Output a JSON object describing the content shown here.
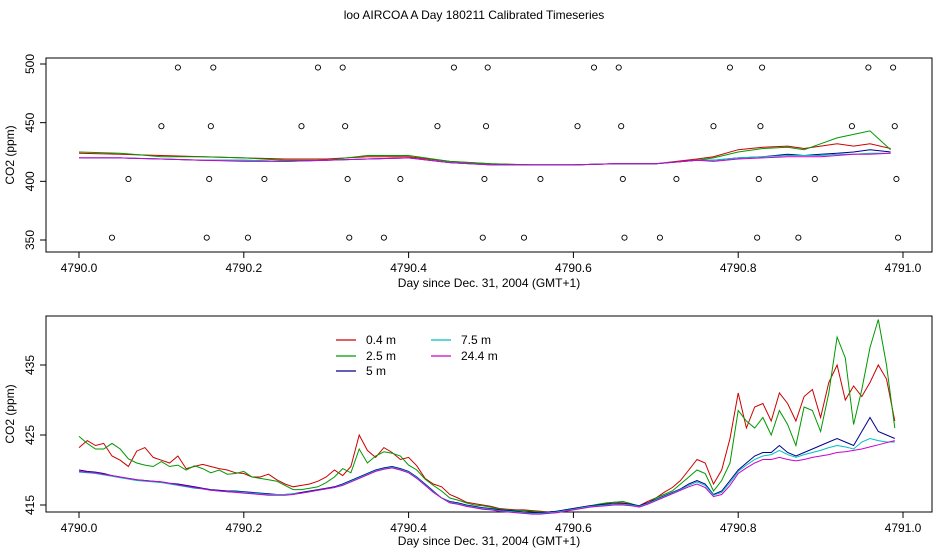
{
  "figure_title": "loo AIRCOA A  Day 180211  Calibrated Timeseries",
  "chart_data": [
    {
      "type": "scatter+line",
      "title": "",
      "xlabel": "Day since Dec. 31, 2004 (GMT+1)",
      "ylabel": "CO2 (ppm)",
      "xlim": [
        4790.0,
        4791.0
      ],
      "ylim": [
        350,
        500
      ],
      "xticks": [
        "4790.0",
        "4790.2",
        "4790.4",
        "4790.6",
        "4790.8",
        "4791.0"
      ],
      "yticks": [
        "350",
        "400",
        "450",
        "500"
      ],
      "scatter_points": [
        {
          "x": 4790.04,
          "y": 352
        },
        {
          "x": 4790.06,
          "y": 402
        },
        {
          "x": 4790.1,
          "y": 447
        },
        {
          "x": 4790.12,
          "y": 497
        },
        {
          "x": 4790.155,
          "y": 352
        },
        {
          "x": 4790.158,
          "y": 402
        },
        {
          "x": 4790.16,
          "y": 447
        },
        {
          "x": 4790.163,
          "y": 497
        },
        {
          "x": 4790.205,
          "y": 352
        },
        {
          "x": 4790.225,
          "y": 402
        },
        {
          "x": 4790.27,
          "y": 447
        },
        {
          "x": 4790.29,
          "y": 497
        },
        {
          "x": 4790.32,
          "y": 497
        },
        {
          "x": 4790.323,
          "y": 447
        },
        {
          "x": 4790.326,
          "y": 402
        },
        {
          "x": 4790.328,
          "y": 352
        },
        {
          "x": 4790.37,
          "y": 352
        },
        {
          "x": 4790.39,
          "y": 402
        },
        {
          "x": 4790.435,
          "y": 447
        },
        {
          "x": 4790.455,
          "y": 497
        },
        {
          "x": 4790.49,
          "y": 352
        },
        {
          "x": 4790.492,
          "y": 402
        },
        {
          "x": 4790.494,
          "y": 447
        },
        {
          "x": 4790.496,
          "y": 497
        },
        {
          "x": 4790.54,
          "y": 352
        },
        {
          "x": 4790.56,
          "y": 402
        },
        {
          "x": 4790.605,
          "y": 447
        },
        {
          "x": 4790.625,
          "y": 497
        },
        {
          "x": 4790.655,
          "y": 497
        },
        {
          "x": 4790.658,
          "y": 447
        },
        {
          "x": 4790.66,
          "y": 402
        },
        {
          "x": 4790.662,
          "y": 352
        },
        {
          "x": 4790.705,
          "y": 352
        },
        {
          "x": 4790.725,
          "y": 402
        },
        {
          "x": 4790.77,
          "y": 447
        },
        {
          "x": 4790.79,
          "y": 497
        },
        {
          "x": 4790.823,
          "y": 352
        },
        {
          "x": 4790.825,
          "y": 402
        },
        {
          "x": 4790.827,
          "y": 447
        },
        {
          "x": 4790.829,
          "y": 497
        },
        {
          "x": 4790.873,
          "y": 352
        },
        {
          "x": 4790.893,
          "y": 402
        },
        {
          "x": 4790.938,
          "y": 447
        },
        {
          "x": 4790.958,
          "y": 497
        },
        {
          "x": 4790.988,
          "y": 497
        },
        {
          "x": 4790.99,
          "y": 447
        },
        {
          "x": 4790.992,
          "y": 402
        },
        {
          "x": 4790.994,
          "y": 352
        }
      ],
      "x": [
        4790.0,
        4790.05,
        4790.1,
        4790.15,
        4790.2,
        4790.25,
        4790.3,
        4790.35,
        4790.4,
        4790.45,
        4790.5,
        4790.55,
        4790.6,
        4790.65,
        4790.7,
        4790.75,
        4790.77,
        4790.8,
        4790.83,
        4790.86,
        4790.88,
        4790.9,
        4790.92,
        4790.94,
        4790.96,
        4790.985
      ],
      "series": [
        {
          "color": "#cc0000",
          "values": [
            424,
            423,
            422,
            421,
            420,
            419,
            419,
            421,
            421,
            417,
            415,
            414,
            414,
            415,
            415,
            419,
            421,
            427,
            429,
            430,
            428,
            430,
            432,
            430,
            432,
            428
          ]
        },
        {
          "color": "#009900",
          "values": [
            425,
            424,
            421,
            421,
            420,
            418,
            418,
            422,
            422,
            417,
            415,
            414,
            414,
            415,
            415,
            418,
            420,
            425,
            428,
            429,
            427,
            432,
            437,
            440,
            443,
            427
          ]
        },
        {
          "color": "#00008b",
          "values": [
            420,
            420,
            419,
            418,
            418,
            417,
            418,
            419,
            420,
            416,
            414,
            414,
            414,
            415,
            415,
            418,
            418,
            420,
            421,
            423,
            422,
            423,
            424,
            425,
            427,
            425
          ]
        },
        {
          "color": "#00bfbf",
          "values": [
            420,
            420,
            419,
            418,
            418,
            417,
            418,
            419,
            420,
            416,
            414,
            414,
            414,
            415,
            415,
            418,
            418,
            420,
            421,
            422,
            422,
            422,
            423,
            423,
            424,
            424
          ]
        },
        {
          "color": "#cc00cc",
          "values": [
            420,
            420,
            419,
            418,
            417,
            417,
            418,
            419,
            420,
            416,
            414,
            414,
            414,
            415,
            415,
            418,
            417,
            419,
            420,
            421,
            421,
            421,
            422,
            423,
            423,
            424
          ]
        }
      ]
    },
    {
      "type": "line",
      "title": "",
      "xlabel": "Day since Dec. 31, 2004 (GMT+1)",
      "ylabel": "CO2 (ppm)",
      "xlim": [
        4790.0,
        4791.0
      ],
      "ylim": [
        414,
        442
      ],
      "xticks": [
        "4790.0",
        "4790.2",
        "4790.4",
        "4790.6",
        "4790.8",
        "4791.0"
      ],
      "yticks": [
        "415",
        "425",
        "435"
      ],
      "legend": {
        "placement": "top-left",
        "entries": [
          {
            "label": "0.4 m",
            "color": "#cc0000"
          },
          {
            "label": "2.5 m",
            "color": "#009900"
          },
          {
            "label": "5 m",
            "color": "#00008b"
          },
          {
            "label": "7.5 m",
            "color": "#00bfbf"
          },
          {
            "label": "24.4 m",
            "color": "#cc00cc"
          }
        ]
      },
      "x": [
        4790.0,
        4790.01,
        4790.02,
        4790.03,
        4790.04,
        4790.05,
        4790.06,
        4790.07,
        4790.08,
        4790.09,
        4790.1,
        4790.11,
        4790.12,
        4790.13,
        4790.14,
        4790.15,
        4790.16,
        4790.17,
        4790.18,
        4790.19,
        4790.2,
        4790.21,
        4790.22,
        4790.23,
        4790.24,
        4790.25,
        4790.26,
        4790.27,
        4790.28,
        4790.29,
        4790.3,
        4790.31,
        4790.32,
        4790.33,
        4790.34,
        4790.35,
        4790.36,
        4790.37,
        4790.38,
        4790.39,
        4790.4,
        4790.41,
        4790.42,
        4790.43,
        4790.44,
        4790.45,
        4790.46,
        4790.47,
        4790.48,
        4790.49,
        4790.5,
        4790.51,
        4790.52,
        4790.53,
        4790.54,
        4790.55,
        4790.56,
        4790.57,
        4790.58,
        4790.59,
        4790.6,
        4790.61,
        4790.62,
        4790.63,
        4790.64,
        4790.65,
        4790.66,
        4790.67,
        4790.68,
        4790.69,
        4790.7,
        4790.71,
        4790.72,
        4790.73,
        4790.74,
        4790.75,
        4790.76,
        4790.77,
        4790.78,
        4790.79,
        4790.8,
        4790.81,
        4790.82,
        4790.83,
        4790.84,
        4790.85,
        4790.86,
        4790.87,
        4790.88,
        4790.89,
        4790.9,
        4790.91,
        4790.92,
        4790.93,
        4790.94,
        4790.95,
        4790.96,
        4790.97,
        4790.98,
        4790.99
      ],
      "series": [
        {
          "name": "0.4 m",
          "color": "#cc0000",
          "values": [
            423.2,
            424.2,
            423.5,
            423.8,
            422.0,
            421.4,
            420.5,
            422.7,
            423.2,
            421.8,
            421.4,
            421.0,
            422.0,
            420.2,
            420.5,
            420.8,
            420.5,
            420.2,
            420.0,
            419.6,
            419.5,
            419.0,
            419.0,
            419.4,
            418.6,
            418.0,
            417.6,
            417.8,
            418.0,
            418.4,
            419.0,
            420.0,
            419.2,
            420.5,
            425.0,
            422.8,
            421.8,
            423.2,
            422.5,
            421.5,
            421.8,
            420.6,
            418.8,
            418.0,
            417.6,
            416.5,
            416.0,
            415.4,
            415.2,
            415.0,
            414.8,
            414.5,
            414.4,
            414.3,
            414.3,
            414.2,
            414.1,
            414.0,
            414.1,
            414.3,
            414.5,
            414.7,
            414.9,
            415.0,
            415.2,
            415.4,
            415.3,
            415.1,
            414.9,
            415.5,
            416.0,
            416.8,
            417.5,
            418.5,
            420.0,
            421.5,
            421.0,
            418.0,
            420.0,
            424.5,
            431.0,
            426.0,
            429.0,
            429.5,
            427.0,
            431.0,
            429.5,
            427.0,
            430.5,
            431.5,
            427.5,
            432.5,
            435.0,
            430.0,
            432.0,
            430.5,
            432.5,
            435.0,
            433.0,
            427.0
          ]
        },
        {
          "name": "2.5 m",
          "color": "#009900",
          "values": [
            424.8,
            423.8,
            423.0,
            423.0,
            423.8,
            423.0,
            421.6,
            421.0,
            420.7,
            420.5,
            421.2,
            420.5,
            420.7,
            420.0,
            420.6,
            420.2,
            419.6,
            420.0,
            419.4,
            419.5,
            419.8,
            419.0,
            418.8,
            418.6,
            418.4,
            417.8,
            417.2,
            417.2,
            417.4,
            417.6,
            418.2,
            419.0,
            420.2,
            419.6,
            423.0,
            421.0,
            422.0,
            422.6,
            422.4,
            422.0,
            420.7,
            420.0,
            418.7,
            417.8,
            417.0,
            416.0,
            415.7,
            415.3,
            415.0,
            414.9,
            414.7,
            414.4,
            414.3,
            414.2,
            414.2,
            414.1,
            414.0,
            414.0,
            414.0,
            414.3,
            414.5,
            414.7,
            414.9,
            415.1,
            415.3,
            415.4,
            415.5,
            415.2,
            414.8,
            415.2,
            416.0,
            416.5,
            417.0,
            418.0,
            419.0,
            420.0,
            419.5,
            417.0,
            418.5,
            421.0,
            428.5,
            427.0,
            426.0,
            427.5,
            425.0,
            428.5,
            426.5,
            423.5,
            429.0,
            428.5,
            425.5,
            431.0,
            439.0,
            436.0,
            426.5,
            431.5,
            437.5,
            441.5,
            435.0,
            426.0
          ]
        },
        {
          "name": "5 m",
          "color": "#00008b",
          "values": [
            420.0,
            419.8,
            419.7,
            419.5,
            419.2,
            419.0,
            418.8,
            418.6,
            418.5,
            418.4,
            418.3,
            418.1,
            418.0,
            417.8,
            417.6,
            417.4,
            417.2,
            417.1,
            417.0,
            417.0,
            416.9,
            416.8,
            416.7,
            416.6,
            416.5,
            416.5,
            416.6,
            416.8,
            417.0,
            417.2,
            417.4,
            417.6,
            418.0,
            418.5,
            419.0,
            419.5,
            420.0,
            420.3,
            420.5,
            420.2,
            419.8,
            419.0,
            418.0,
            417.0,
            416.0,
            415.5,
            415.3,
            415.0,
            414.8,
            414.6,
            414.5,
            414.3,
            414.2,
            414.1,
            414.0,
            413.9,
            413.9,
            414.0,
            414.1,
            414.3,
            414.5,
            414.7,
            414.9,
            415.0,
            415.1,
            415.2,
            415.2,
            415.1,
            414.9,
            415.3,
            415.8,
            416.3,
            416.8,
            417.3,
            418.0,
            418.5,
            418.0,
            416.5,
            417.0,
            418.5,
            420.0,
            421.0,
            422.0,
            422.5,
            422.5,
            423.5,
            422.5,
            422.0,
            422.5,
            423.0,
            423.5,
            424.0,
            424.5,
            424.0,
            423.5,
            425.5,
            427.5,
            425.5,
            425.0,
            424.5
          ]
        },
        {
          "name": "7.5 m",
          "color": "#00bfbf",
          "values": [
            419.7,
            419.6,
            419.5,
            419.3,
            419.1,
            418.9,
            418.7,
            418.5,
            418.4,
            418.3,
            418.2,
            418.0,
            417.8,
            417.6,
            417.4,
            417.3,
            417.1,
            417.0,
            416.9,
            416.9,
            416.8,
            416.7,
            416.6,
            416.5,
            416.5,
            416.5,
            416.6,
            416.7,
            416.9,
            417.1,
            417.3,
            417.5,
            417.9,
            418.4,
            418.9,
            419.4,
            419.9,
            420.2,
            420.4,
            420.1,
            419.7,
            418.9,
            417.9,
            416.9,
            416.0,
            415.4,
            415.2,
            414.9,
            414.7,
            414.5,
            414.4,
            414.2,
            414.1,
            414.0,
            413.9,
            413.8,
            413.8,
            413.9,
            414.0,
            414.2,
            414.4,
            414.6,
            414.8,
            414.9,
            415.0,
            415.1,
            415.1,
            415.0,
            414.8,
            415.2,
            415.7,
            416.2,
            416.7,
            417.2,
            417.8,
            418.3,
            417.8,
            416.4,
            416.8,
            418.2,
            419.8,
            420.7,
            421.5,
            422.0,
            422.2,
            422.8,
            422.2,
            421.8,
            422.2,
            422.5,
            422.8,
            423.2,
            423.5,
            423.3,
            423.0,
            424.0,
            424.5,
            424.2,
            424.0,
            424.0
          ]
        },
        {
          "name": "24.4 m",
          "color": "#cc00cc",
          "values": [
            419.8,
            419.7,
            419.6,
            419.4,
            419.2,
            419.0,
            418.8,
            418.6,
            418.5,
            418.4,
            418.3,
            418.1,
            417.9,
            417.7,
            417.5,
            417.3,
            417.1,
            417.0,
            416.9,
            416.8,
            416.7,
            416.6,
            416.5,
            416.4,
            416.4,
            416.4,
            416.5,
            416.7,
            416.9,
            417.1,
            417.3,
            417.5,
            417.8,
            418.3,
            418.8,
            419.3,
            419.8,
            420.1,
            420.3,
            420.0,
            419.6,
            418.8,
            417.8,
            416.8,
            416.0,
            415.3,
            415.1,
            414.8,
            414.6,
            414.4,
            414.3,
            414.1,
            414.0,
            413.9,
            413.8,
            413.7,
            413.7,
            413.8,
            413.9,
            414.1,
            414.3,
            414.5,
            414.7,
            414.8,
            414.9,
            415.0,
            415.0,
            414.9,
            414.7,
            415.1,
            415.6,
            416.1,
            416.6,
            417.1,
            417.6,
            418.0,
            417.5,
            416.2,
            416.5,
            417.8,
            419.5,
            420.3,
            421.0,
            421.5,
            421.5,
            421.8,
            421.5,
            421.3,
            421.5,
            421.8,
            422.0,
            422.2,
            422.5,
            422.6,
            422.8,
            423.0,
            423.3,
            423.6,
            423.9,
            424.2
          ]
        }
      ]
    }
  ]
}
